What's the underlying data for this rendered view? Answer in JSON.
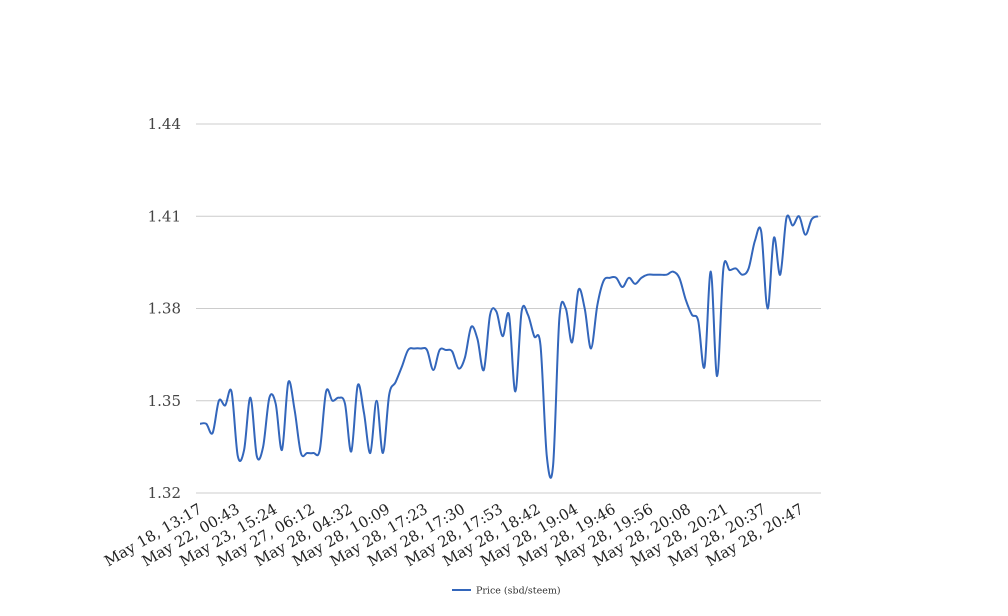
{
  "chart_data": {
    "type": "line",
    "title": "",
    "xlabel": "",
    "ylabel": "",
    "ylim": [
      1.32,
      1.44
    ],
    "yticks": [
      "1.32",
      "1.35",
      "1.38",
      "1.41",
      "1.44"
    ],
    "grid": true,
    "legend_placement": "bottom",
    "line_color": "#3366bb",
    "x_tick_labels": [
      "May 18, 13:17",
      "May 22, 00:43",
      "May 23, 15:24",
      "May 27, 06:12",
      "May 28, 04:32",
      "May 28, 10:09",
      "May 28, 17:23",
      "May 28, 17:30",
      "May 28, 17:53",
      "May 28, 18:42",
      "May 28, 19:04",
      "May 28, 19:46",
      "May 28, 19:56",
      "May 28, 20:08",
      "May 28, 20:21",
      "May 28, 20:37",
      "May 28, 20:47"
    ],
    "series": [
      {
        "name": "Price (sbd/steem)",
        "values": [
          1.3425,
          1.3425,
          1.3395,
          1.35,
          1.3485,
          1.353,
          1.332,
          1.334,
          1.351,
          1.332,
          1.335,
          1.351,
          1.349,
          1.334,
          1.356,
          1.347,
          1.333,
          1.333,
          1.333,
          1.334,
          1.353,
          1.35,
          1.351,
          1.349,
          1.3335,
          1.355,
          1.346,
          1.333,
          1.35,
          1.333,
          1.352,
          1.356,
          1.361,
          1.3665,
          1.367,
          1.367,
          1.3665,
          1.36,
          1.3665,
          1.3665,
          1.366,
          1.3605,
          1.364,
          1.374,
          1.37,
          1.36,
          1.378,
          1.379,
          1.371,
          1.378,
          1.353,
          1.379,
          1.378,
          1.371,
          1.368,
          1.332,
          1.329,
          1.377,
          1.38,
          1.369,
          1.386,
          1.38,
          1.367,
          1.381,
          1.389,
          1.39,
          1.39,
          1.387,
          1.39,
          1.388,
          1.39,
          1.391,
          1.391,
          1.391,
          1.391,
          1.392,
          1.39,
          1.383,
          1.378,
          1.376,
          1.361,
          1.392,
          1.358,
          1.393,
          1.3925,
          1.393,
          1.391,
          1.393,
          1.402,
          1.405,
          1.38,
          1.403,
          1.391,
          1.4095,
          1.407,
          1.41,
          1.404,
          1.409,
          1.41
        ]
      }
    ]
  }
}
